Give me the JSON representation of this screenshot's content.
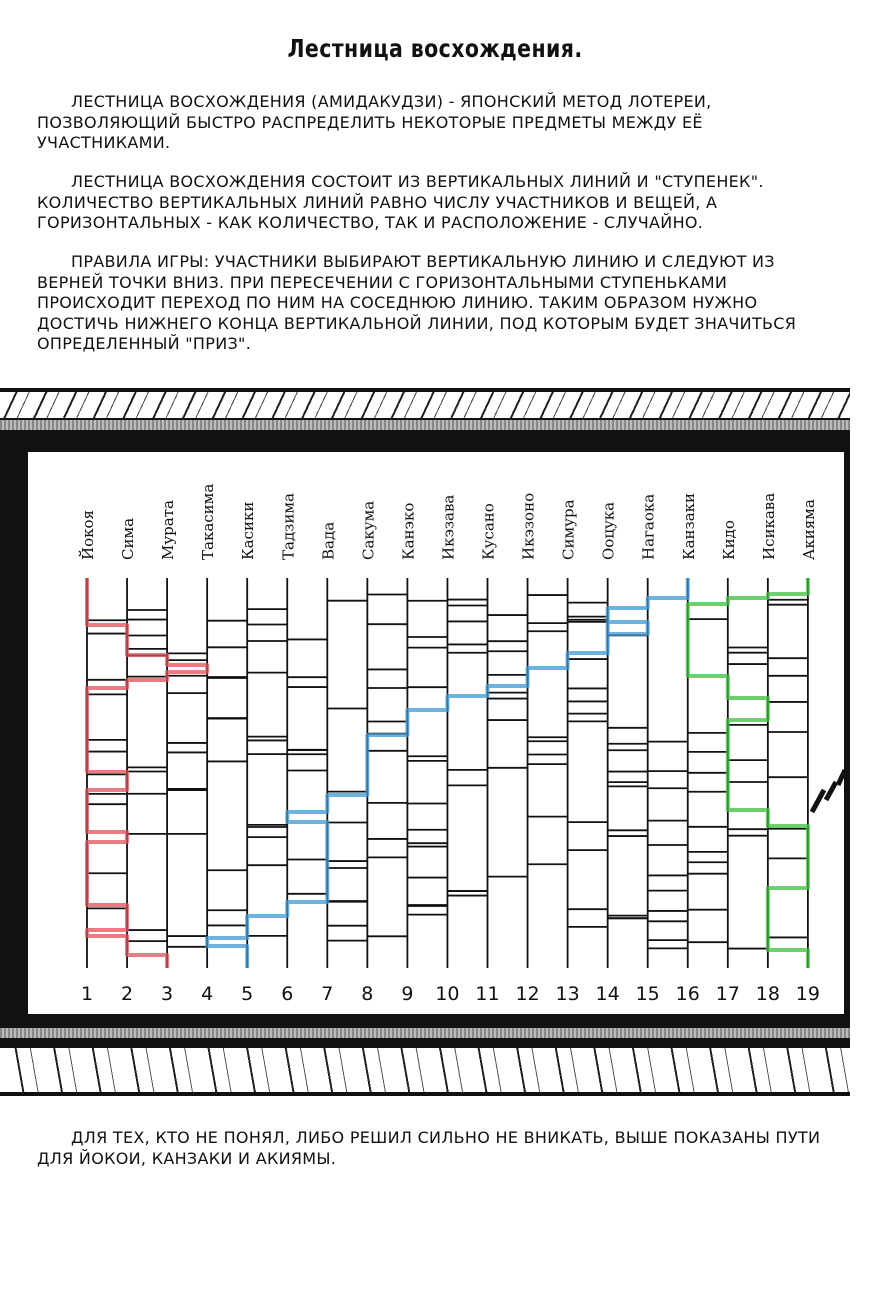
{
  "title": "Лестница восхождения.",
  "paragraphs": [
    "Лестница восхождения (амидакудзи) - японский метод лотереи, позволяющий быстро распределить некоторые предметы между её участниками.",
    "Лестница восхождения состоит из вертикальных линий и \"ступенек\". Количество вертикальных линий равно числу участников и вещей, а горизонтальных - как количество, так и расположение - случайно.",
    "Правила игры: участники выбирают вертикальную линию и следуют из верней точки вниз. При пересечении с горизонтальными ступеньками происходит переход по ним на соседнюю линию. Таким образом нужно достичь нижнего конца вертикальной линии, под которым будет значиться определенный \"приз\".",
    "Для тех, кто не понял, либо решил сильно не вникать, выше показаны пути для Йокои, Канзаки и Акиямы."
  ],
  "ladder": {
    "names": [
      "Йокоя",
      "Сима",
      "Мурата",
      "Такасима",
      "Касики",
      "Тадзима",
      "Вада",
      "Сакума",
      "Канэко",
      "Икэзава",
      "Кусано",
      "Икэзоно",
      "Симура",
      "Ооцука",
      "Нагаока",
      "Канзаки",
      "Кидо",
      "Исикава",
      "Акияма"
    ],
    "numbers": [
      "1",
      "2",
      "3",
      "4",
      "5",
      "6",
      "7",
      "8",
      "9",
      "10",
      "11",
      "12",
      "13",
      "14",
      "15",
      "16",
      "17",
      "18",
      "19"
    ],
    "highlighted_paths": [
      {
        "name": "Йокоя",
        "from": "1",
        "to": "3",
        "color": "#e0505a"
      },
      {
        "name": "Канзаки",
        "from": "16",
        "to": "5",
        "color": "#3d9ad6"
      },
      {
        "name": "Акияма",
        "from": "19",
        "to": "19",
        "color": "#3cbf3c"
      }
    ]
  }
}
